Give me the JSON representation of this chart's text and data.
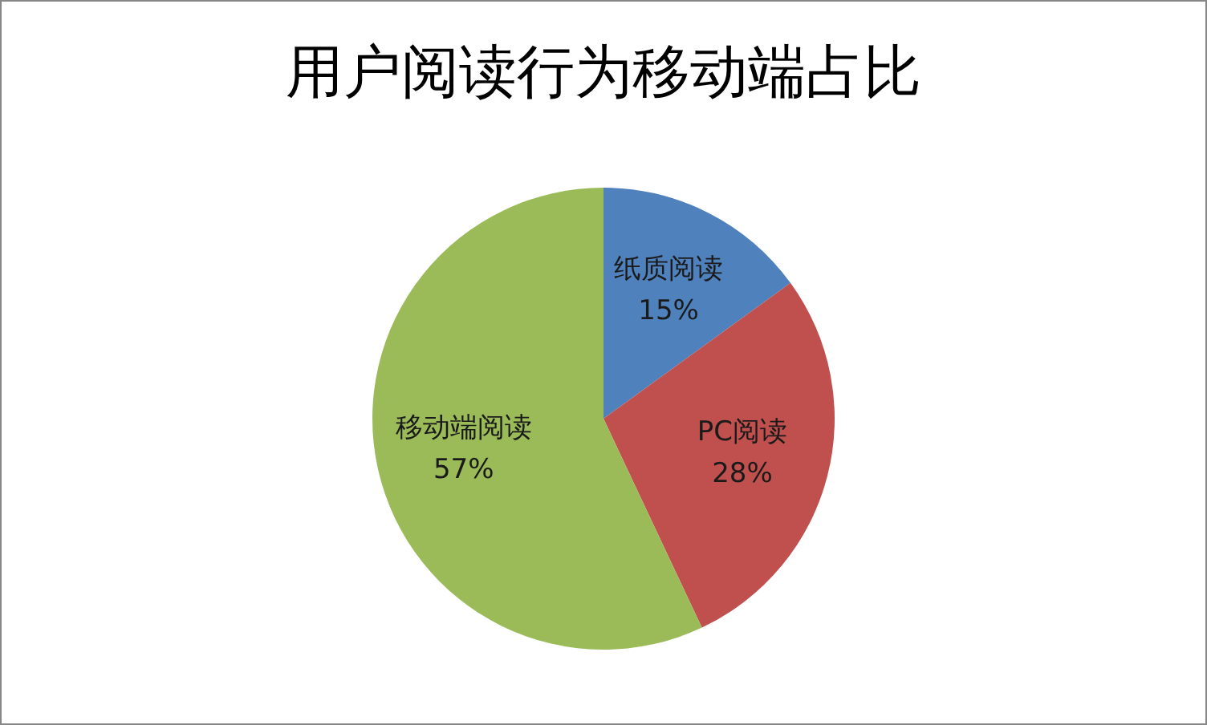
{
  "chart_data": {
    "type": "pie",
    "title": "用户阅读行为移动端占比",
    "categories": [
      "纸质阅读",
      "PC阅读",
      "移动端阅读"
    ],
    "values": [
      15,
      28,
      57
    ],
    "colors": [
      "#4f81bd",
      "#c0504d",
      "#9bbb59"
    ],
    "value_labels": [
      "15%",
      "28%",
      "57%"
    ]
  }
}
